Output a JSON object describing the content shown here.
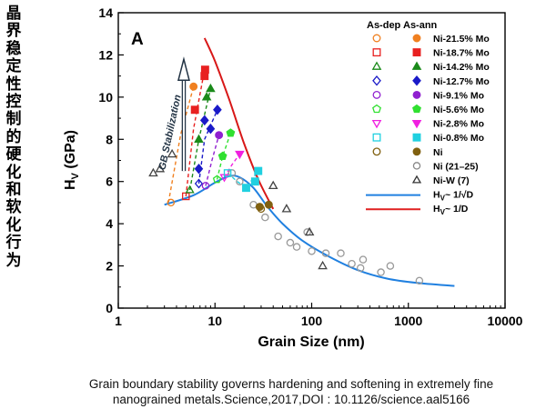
{
  "side_title_chars": [
    "晶",
    "界",
    "稳",
    "定",
    "性",
    "控",
    "制",
    "的",
    "硬",
    "化",
    "和",
    "软",
    "化",
    "行",
    "为"
  ],
  "caption": {
    "line1": "Grain boundary stability governs hardening and softening in extremely fine",
    "line2": "nanograined metals.Science,2017,DOI : 10.1126/science.aal5166"
  },
  "chart_data": {
    "type": "scatter",
    "panel_label": "A",
    "xlabel": "Grain Size (nm)",
    "ylabel_main": "H",
    "ylabel_sub": "V",
    "ylabel_rest": " (GPa)",
    "x_scale": "log",
    "xlim": [
      1,
      10000
    ],
    "ylim": [
      0,
      14
    ],
    "x_ticks": [
      1,
      10,
      100,
      1000,
      10000
    ],
    "y_ticks": [
      0,
      2,
      4,
      6,
      8,
      10,
      12,
      14
    ],
    "annotation": "GB Stabilization",
    "legend": {
      "position": "top-right",
      "header_dep": "As-dep",
      "header_ann": "As-ann",
      "entries": [
        {
          "label": "Ni-21.5% Mo",
          "color": "#f08020",
          "shape": "circle"
        },
        {
          "label": "Ni-18.7% Mo",
          "color": "#e82020",
          "shape": "square"
        },
        {
          "label": "Ni-14.2% Mo",
          "color": "#1a8a1a",
          "shape": "triangle"
        },
        {
          "label": "Ni-12.7% Mo",
          "color": "#1a1ac8",
          "shape": "diamond"
        },
        {
          "label": "Ni-9.1% Mo",
          "color": "#9020d0",
          "shape": "circle"
        },
        {
          "label": "Ni-5.6% Mo",
          "color": "#30e030",
          "shape": "pentagon"
        },
        {
          "label": "Ni-2.8% Mo",
          "color": "#f020e0",
          "shape": "invtriangle"
        },
        {
          "label": "Ni-0.8% Mo",
          "color": "#20d0e0",
          "shape": "square"
        },
        {
          "label": "Ni",
          "color": "#806010",
          "shape": "circle"
        },
        {
          "label": "Ni (21–25)",
          "color": "#888888",
          "shape": "circle",
          "hollow_only": true
        },
        {
          "label": "Ni-W (7)",
          "color": "#333333",
          "shape": "triangle",
          "hollow_only": true
        },
        {
          "label": "H",
          "sub": "V",
          "suffix": "~ 1/√D",
          "color": "#2080e0",
          "shape": "line"
        },
        {
          "label": "H",
          "sub": "V",
          "suffix": "~ 1/D",
          "color": "#e02020",
          "shape": "line"
        }
      ]
    },
    "series": [
      {
        "name": "Ni-21.5% Mo",
        "color": "#f08020",
        "shape": "circle",
        "dep": [
          3.5,
          5.0
        ],
        "ann": [
          [
            6.0,
            10.5
          ]
        ]
      },
      {
        "name": "Ni-18.7% Mo",
        "color": "#e82020",
        "shape": "square",
        "dep": [
          5.0,
          5.3
        ],
        "ann": [
          [
            6.2,
            9.4
          ],
          [
            7.8,
            11.0
          ],
          [
            7.9,
            11.3
          ]
        ]
      },
      {
        "name": "Ni-14.2% Mo",
        "color": "#1a8a1a",
        "shape": "triangle",
        "dep": [
          5.5,
          5.6
        ],
        "ann": [
          [
            6.8,
            8.0
          ],
          [
            8.2,
            10.0
          ],
          [
            9.0,
            10.4
          ]
        ]
      },
      {
        "name": "Ni-12.7% Mo",
        "color": "#1a1ac8",
        "shape": "diamond",
        "dep": [
          6.8,
          5.9
        ],
        "ann": [
          [
            6.8,
            6.6
          ],
          [
            7.8,
            8.9
          ],
          [
            9.0,
            8.5
          ],
          [
            10.6,
            9.4
          ]
        ]
      },
      {
        "name": "Ni-9.1% Mo",
        "color": "#9020d0",
        "shape": "circle",
        "dep": [
          8.0,
          5.8
        ],
        "ann": [
          [
            11.0,
            8.2
          ]
        ]
      },
      {
        "name": "Ni-5.6% Mo",
        "color": "#30e030",
        "shape": "pentagon",
        "dep": [
          10.5,
          6.1
        ],
        "ann": [
          [
            12.0,
            7.2
          ],
          [
            14.5,
            8.3
          ]
        ]
      },
      {
        "name": "Ni-2.8% Mo",
        "color": "#f020e0",
        "shape": "invtriangle",
        "dep": [
          12.5,
          6.2
        ],
        "ann": [
          [
            18.0,
            7.3
          ]
        ]
      },
      {
        "name": "Ni-0.8% Mo",
        "color": "#20d0e0",
        "shape": "square",
        "dep": [
          13.5,
          6.4
        ],
        "ann": [
          [
            21.0,
            5.7
          ],
          [
            26.0,
            6.0
          ],
          [
            28.0,
            6.5
          ]
        ]
      },
      {
        "name": "Ni",
        "color": "#806010",
        "shape": "circle",
        "dep": [
          30.0,
          4.7
        ],
        "ann": [
          [
            29.0,
            4.8
          ],
          [
            36.0,
            4.9
          ]
        ]
      }
    ],
    "ref_ni": [
      [
        15,
        6.4
      ],
      [
        18,
        6.0
      ],
      [
        25,
        4.9
      ],
      [
        33,
        4.3
      ],
      [
        45,
        3.4
      ],
      [
        60,
        3.1
      ],
      [
        70,
        2.9
      ],
      [
        90,
        3.6
      ],
      [
        100,
        2.7
      ],
      [
        140,
        2.6
      ],
      [
        200,
        2.6
      ],
      [
        260,
        2.1
      ],
      [
        320,
        1.9
      ],
      [
        340,
        2.3
      ],
      [
        520,
        1.7
      ],
      [
        650,
        2.0
      ],
      [
        1300,
        1.3
      ]
    ],
    "ref_niw": [
      [
        2.3,
        6.4
      ],
      [
        2.7,
        6.6
      ],
      [
        3.6,
        7.3
      ],
      [
        40,
        5.8
      ],
      [
        55,
        4.7
      ],
      [
        95,
        3.6
      ],
      [
        130,
        2.0
      ]
    ],
    "curve_sqrt": [
      [
        3.0,
        4.9
      ],
      [
        6.0,
        5.35
      ],
      [
        10.0,
        5.95
      ],
      [
        14.0,
        6.25
      ],
      [
        18.0,
        6.2
      ],
      [
        25.0,
        5.7
      ],
      [
        35.0,
        4.8
      ],
      [
        50.0,
        4.0
      ],
      [
        80.0,
        3.2
      ],
      [
        150.0,
        2.45
      ],
      [
        300.0,
        1.8
      ],
      [
        600.0,
        1.4
      ],
      [
        1200.0,
        1.2
      ],
      [
        3000.0,
        1.05
      ]
    ],
    "curve_inv": [
      [
        7.8,
        12.8
      ],
      [
        10.0,
        11.7
      ],
      [
        14.0,
        9.9
      ],
      [
        20.0,
        7.8
      ],
      [
        28.0,
        6.1
      ],
      [
        40.0,
        4.7
      ]
    ],
    "stab_lines": [
      [
        [
          3.3,
          5.0
        ],
        [
          4.4,
          8.2
        ],
        [
          6.0,
          10.5
        ]
      ],
      [
        [
          5.0,
          5.3
        ],
        [
          6.0,
          8.5
        ],
        [
          7.8,
          11.3
        ]
      ],
      [
        [
          5.5,
          5.6
        ],
        [
          6.8,
          8.0
        ],
        [
          9.0,
          10.4
        ]
      ],
      [
        [
          6.8,
          5.9
        ],
        [
          7.8,
          8.0
        ],
        [
          10.6,
          9.4
        ]
      ],
      [
        [
          8.0,
          5.8
        ],
        [
          9.3,
          7.0
        ],
        [
          11.0,
          8.2
        ]
      ],
      [
        [
          10.5,
          6.1
        ],
        [
          12.0,
          7.2
        ],
        [
          14.5,
          8.3
        ]
      ],
      [
        [
          12.5,
          6.2
        ],
        [
          15.0,
          6.8
        ],
        [
          18.0,
          7.3
        ]
      ],
      [
        [
          13.5,
          6.4
        ],
        [
          17.0,
          6.0
        ],
        [
          21.0,
          5.7
        ],
        [
          28.0,
          6.5
        ]
      ]
    ]
  }
}
